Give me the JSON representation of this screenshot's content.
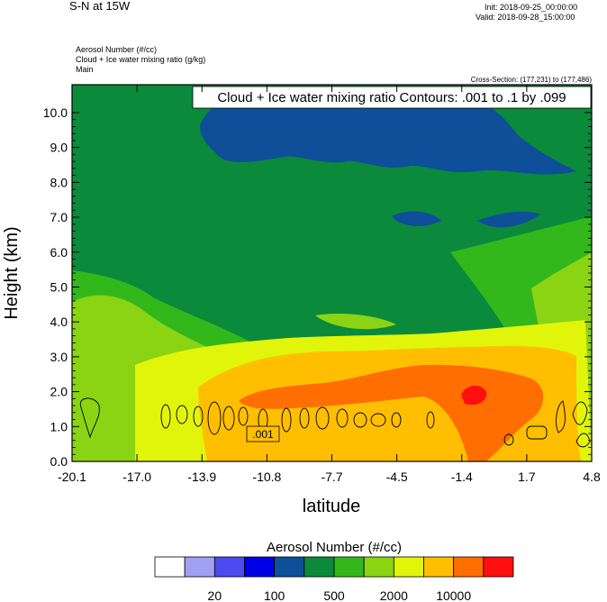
{
  "header": {
    "title": "S-N at 15W",
    "init": "Init: 2018-09-25_00:00:00",
    "valid": "Valid: 2018-09-28_15:00:00",
    "field1": "Aerosol Number   (#/cc)",
    "field2": "Cloud + Ice water mixing ratio   (g/kg)",
    "field3": "Main",
    "cross_section": "Cross-Section: (177,231) to (177,486)"
  },
  "chart_data": {
    "type": "heatmap",
    "title": "S-N at 15W",
    "xlabel": "latitude",
    "ylabel": "Height (km)",
    "xlim": [
      -20.1,
      4.8
    ],
    "ylim": [
      0.0,
      10.8
    ],
    "x_ticks": [
      "-20.1",
      "-17.0",
      "-13.9",
      "-10.8",
      "-7.7",
      "-4.5",
      "-1.4",
      "1.7",
      "4.8"
    ],
    "y_ticks": [
      "0.0",
      "1.0",
      "2.0",
      "3.0",
      "4.0",
      "5.0",
      "6.0",
      "7.0",
      "8.0",
      "9.0",
      "10.0"
    ],
    "contour_info": "Cloud + Ice water mixing ratio Contours: .001 to .1 by .099",
    "contour_label": ".001",
    "colorbar": {
      "title": "Aerosol Number  (#/cc)",
      "colors": [
        "#ffffff",
        "#a0a0f5",
        "#4b4bf0",
        "#0000e6",
        "#0d4f99",
        "#0b8a3b",
        "#33b81c",
        "#8ad414",
        "#e1f50a",
        "#ffbf00",
        "#ff6e00",
        "#ff0f0f"
      ],
      "labels": [
        "20",
        "100",
        "500",
        "2000",
        "10000"
      ]
    }
  }
}
